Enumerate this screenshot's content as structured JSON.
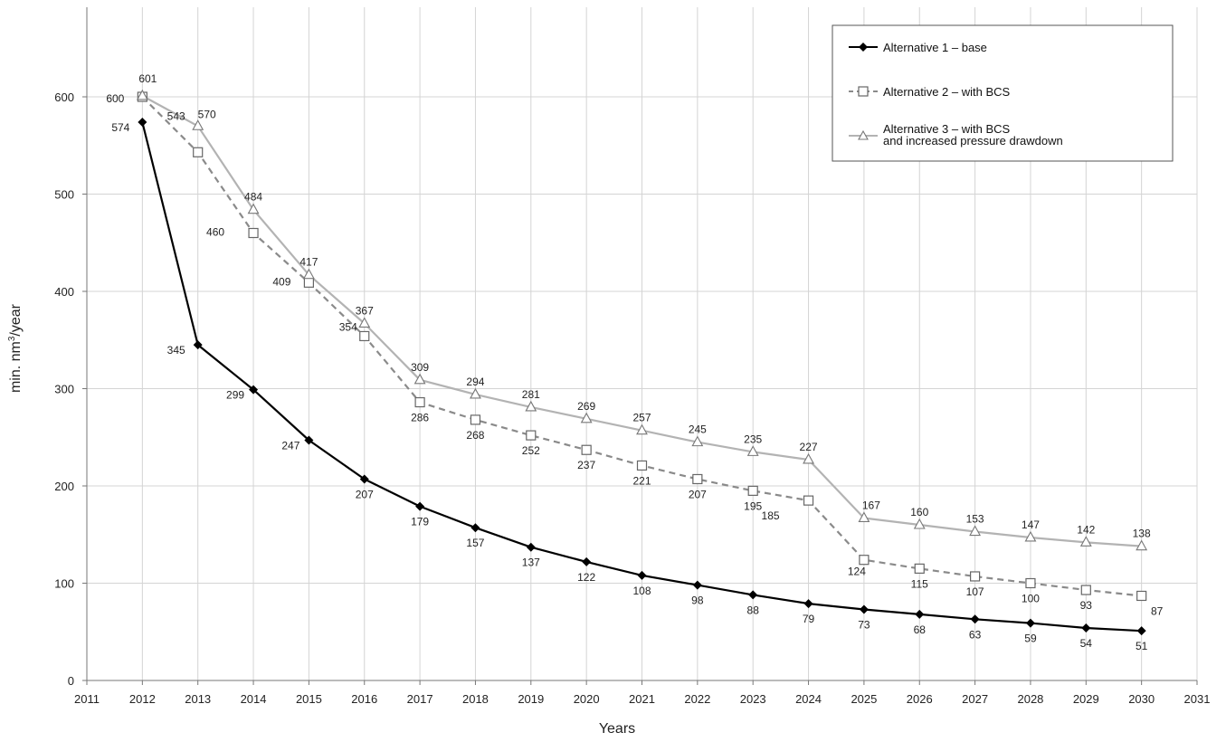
{
  "chart_data": {
    "type": "line",
    "title": "",
    "xlabel": "Years",
    "ylabel_prefix": "min. nm",
    "ylabel_sup": "3",
    "ylabel_suffix": "/year",
    "xlim": [
      2011,
      2031
    ],
    "ylim": [
      0,
      600
    ],
    "x_ticks": [
      2011,
      2012,
      2013,
      2014,
      2015,
      2016,
      2017,
      2018,
      2019,
      2020,
      2021,
      2022,
      2023,
      2024,
      2025,
      2026,
      2027,
      2028,
      2029,
      2030,
      2031
    ],
    "y_ticks": [
      0,
      100,
      200,
      300,
      400,
      500,
      600
    ],
    "grid": true,
    "legend_position": "top-right",
    "x": [
      2012,
      2013,
      2014,
      2015,
      2016,
      2017,
      2018,
      2019,
      2020,
      2021,
      2022,
      2023,
      2024,
      2025,
      2026,
      2027,
      2028,
      2029,
      2030
    ],
    "series": [
      {
        "name": "Alternative 1 – base",
        "color": "#000000",
        "marker": "diamond",
        "dash": "solid",
        "values": [
          574,
          345,
          299,
          247,
          207,
          179,
          157,
          137,
          122,
          108,
          98,
          88,
          79,
          73,
          68,
          63,
          59,
          54,
          51
        ]
      },
      {
        "name": "Alternative 2 – with BCS",
        "color": "#8a8a8a",
        "marker": "square",
        "dash": "dashed",
        "values": [
          600,
          543,
          460,
          409,
          354,
          286,
          268,
          252,
          237,
          221,
          207,
          195,
          185,
          124,
          115,
          107,
          100,
          93,
          87
        ]
      },
      {
        "name": "Alternative 3 – with BCS",
        "name_line2": "and increased pressure drawdown",
        "color": "#b3b3b3",
        "marker": "triangle",
        "dash": "solid",
        "values": [
          601,
          570,
          484,
          417,
          367,
          309,
          294,
          281,
          269,
          257,
          245,
          235,
          227,
          167,
          160,
          153,
          147,
          142,
          138
        ]
      }
    ]
  }
}
